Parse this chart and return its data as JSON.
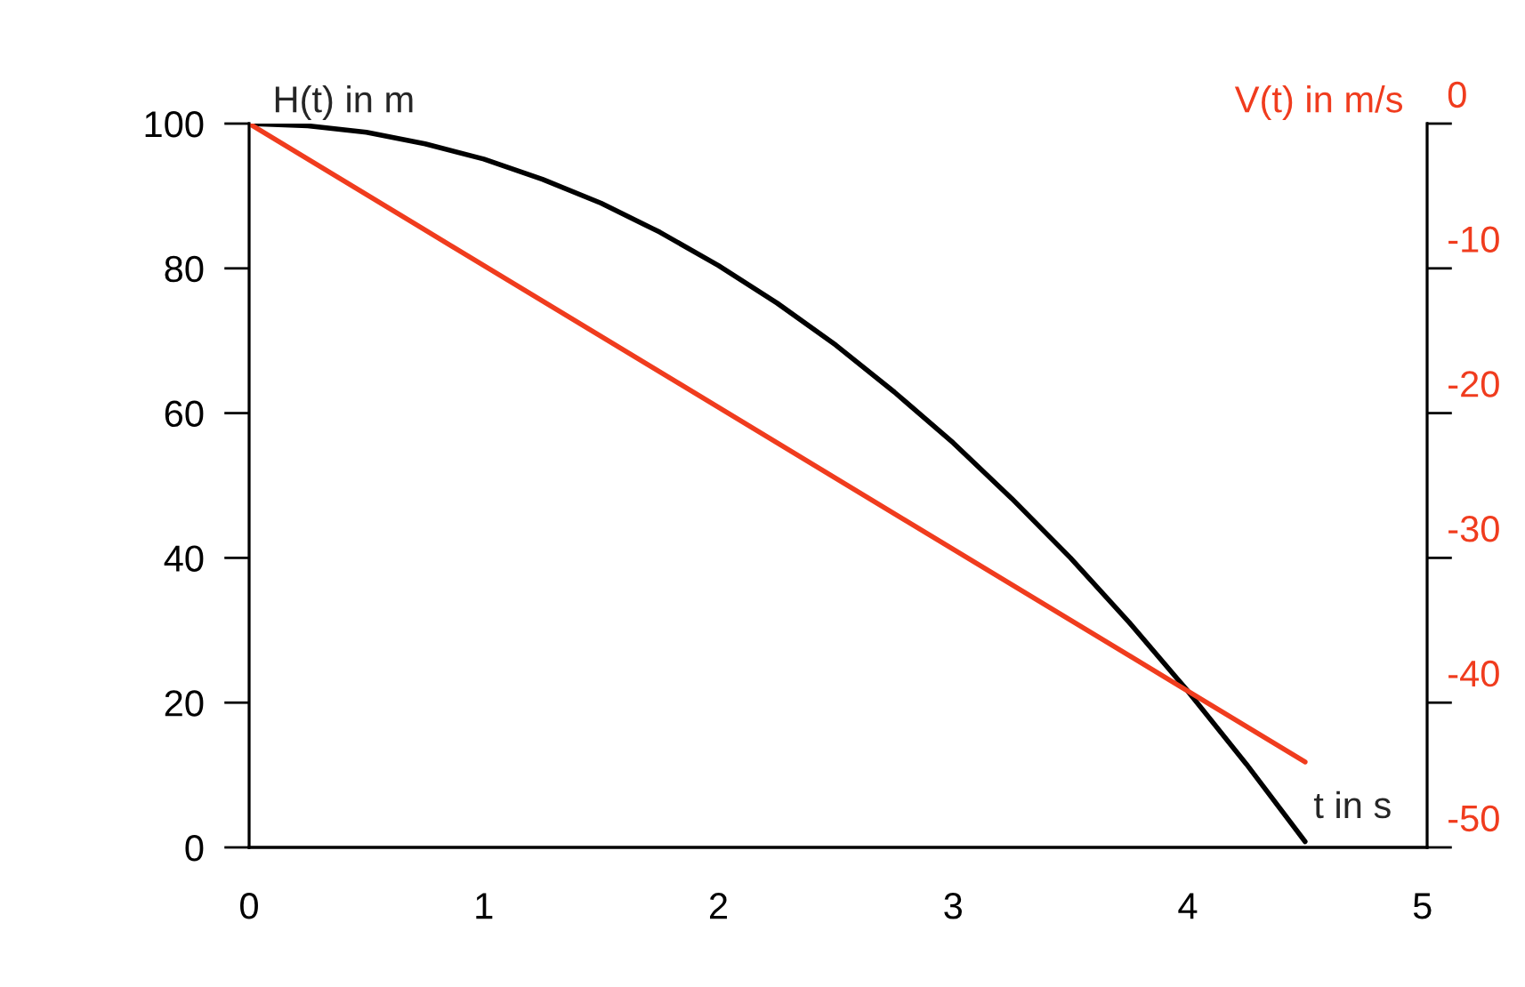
{
  "chart_data": {
    "type": "line",
    "xlabel": "t in s",
    "ylabel": "H(t) in m",
    "y2label": "V(t) in m/s",
    "series": [
      {
        "color": "#000000",
        "x": [
          0,
          0.25,
          0.5,
          0.75,
          1,
          1.25,
          1.5,
          1.75,
          2,
          2.25,
          2.5,
          2.75,
          3,
          3.25,
          3.5,
          3.75,
          4,
          4.25,
          4.5
        ],
        "values": [
          100,
          99.7,
          98.8,
          97.2,
          95.1,
          92.3,
          89.0,
          85.0,
          80.4,
          75.2,
          69.4,
          62.9,
          55.9,
          48.2,
          40.0,
          31.1,
          21.6,
          11.5,
          0.8
        ]
      },
      {
        "color": "#f03c1e",
        "axis": "y2",
        "x": [
          0,
          4.5
        ],
        "values": [
          0,
          -44.1
        ]
      }
    ],
    "xlim": [
      0,
      5.02
    ],
    "xticks": [
      0,
      1,
      2,
      3,
      4,
      5
    ],
    "ylim": [
      0,
      100
    ],
    "yticks": [
      0,
      20,
      40,
      60,
      80,
      100
    ],
    "y2lim": [
      -50,
      0
    ],
    "y2ticks": [
      -50,
      -40,
      -30,
      -20,
      -10,
      0
    ],
    "grid": false,
    "marker": "none",
    "line_style": "solid"
  }
}
